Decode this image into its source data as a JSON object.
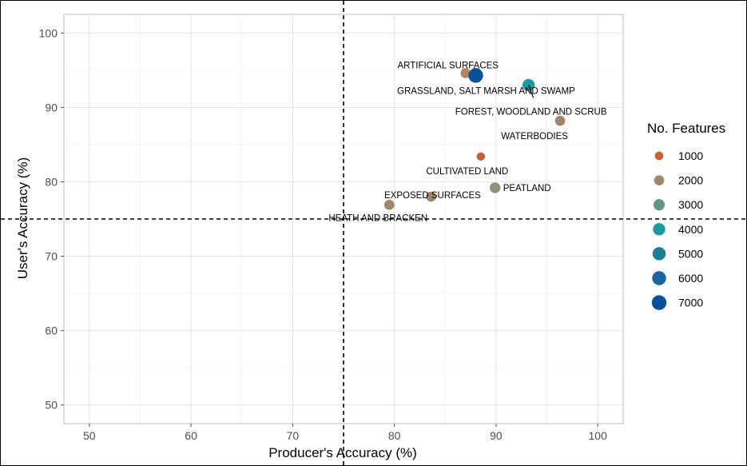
{
  "chart_data": {
    "type": "scatter",
    "xlabel": "Producer's Accuracy (%)",
    "ylabel": "User's Accuracy (%)",
    "xlim": [
      47.5,
      102.5
    ],
    "ylim": [
      47.5,
      102.5
    ],
    "xticks": [
      50,
      60,
      70,
      80,
      90,
      100
    ],
    "yticks": [
      50,
      60,
      70,
      80,
      90,
      100
    ],
    "grid": true,
    "reference_lines": {
      "x": 75,
      "y": 75,
      "style": "dashed"
    },
    "points": [
      {
        "label": "ARTIFICIAL SURFACES",
        "x": 87.0,
        "y": 94.6,
        "features": 1900,
        "color": "#b08560"
      },
      {
        "label": "GRASSLAND, SALT MARSH AND SWAMP",
        "x": 88.0,
        "y": 94.3,
        "features": 7000,
        "color": "#08519c"
      },
      {
        "label": "FOREST, WOODLAND AND SCRUB",
        "x": 93.2,
        "y": 93.0,
        "features": 4000,
        "color": "#1a9aa4"
      },
      {
        "label": "WATERBODIES",
        "x": 96.3,
        "y": 88.2,
        "features": 2000,
        "color": "#a08769"
      },
      {
        "label": "CULTIVATED LAND",
        "x": 88.5,
        "y": 83.4,
        "features": 900,
        "color": "#c8612c"
      },
      {
        "label": "PEATLAND",
        "x": 89.9,
        "y": 79.2,
        "features": 2500,
        "color": "#8f8f7a"
      },
      {
        "label": "EXPOSED SURFACES",
        "x": 83.6,
        "y": 78.0,
        "features": 2000,
        "color": "#a08769"
      },
      {
        "label": "HEATH AND BRACKEN",
        "x": 79.5,
        "y": 76.9,
        "features": 2000,
        "color": "#a08769"
      }
    ],
    "legend": {
      "title": "No. Features",
      "position": "right",
      "entries": [
        {
          "label": "1000",
          "value": 1000,
          "color": "#c8612c"
        },
        {
          "label": "2000",
          "value": 2000,
          "color": "#a08769"
        },
        {
          "label": "3000",
          "value": 3000,
          "color": "#5e9688"
        },
        {
          "label": "4000",
          "value": 4000,
          "color": "#1a9aa4"
        },
        {
          "label": "5000",
          "value": 5000,
          "color": "#1b7f98"
        },
        {
          "label": "6000",
          "value": 6000,
          "color": "#1967a0"
        },
        {
          "label": "7000",
          "value": 7000,
          "color": "#08519c"
        }
      ]
    }
  }
}
